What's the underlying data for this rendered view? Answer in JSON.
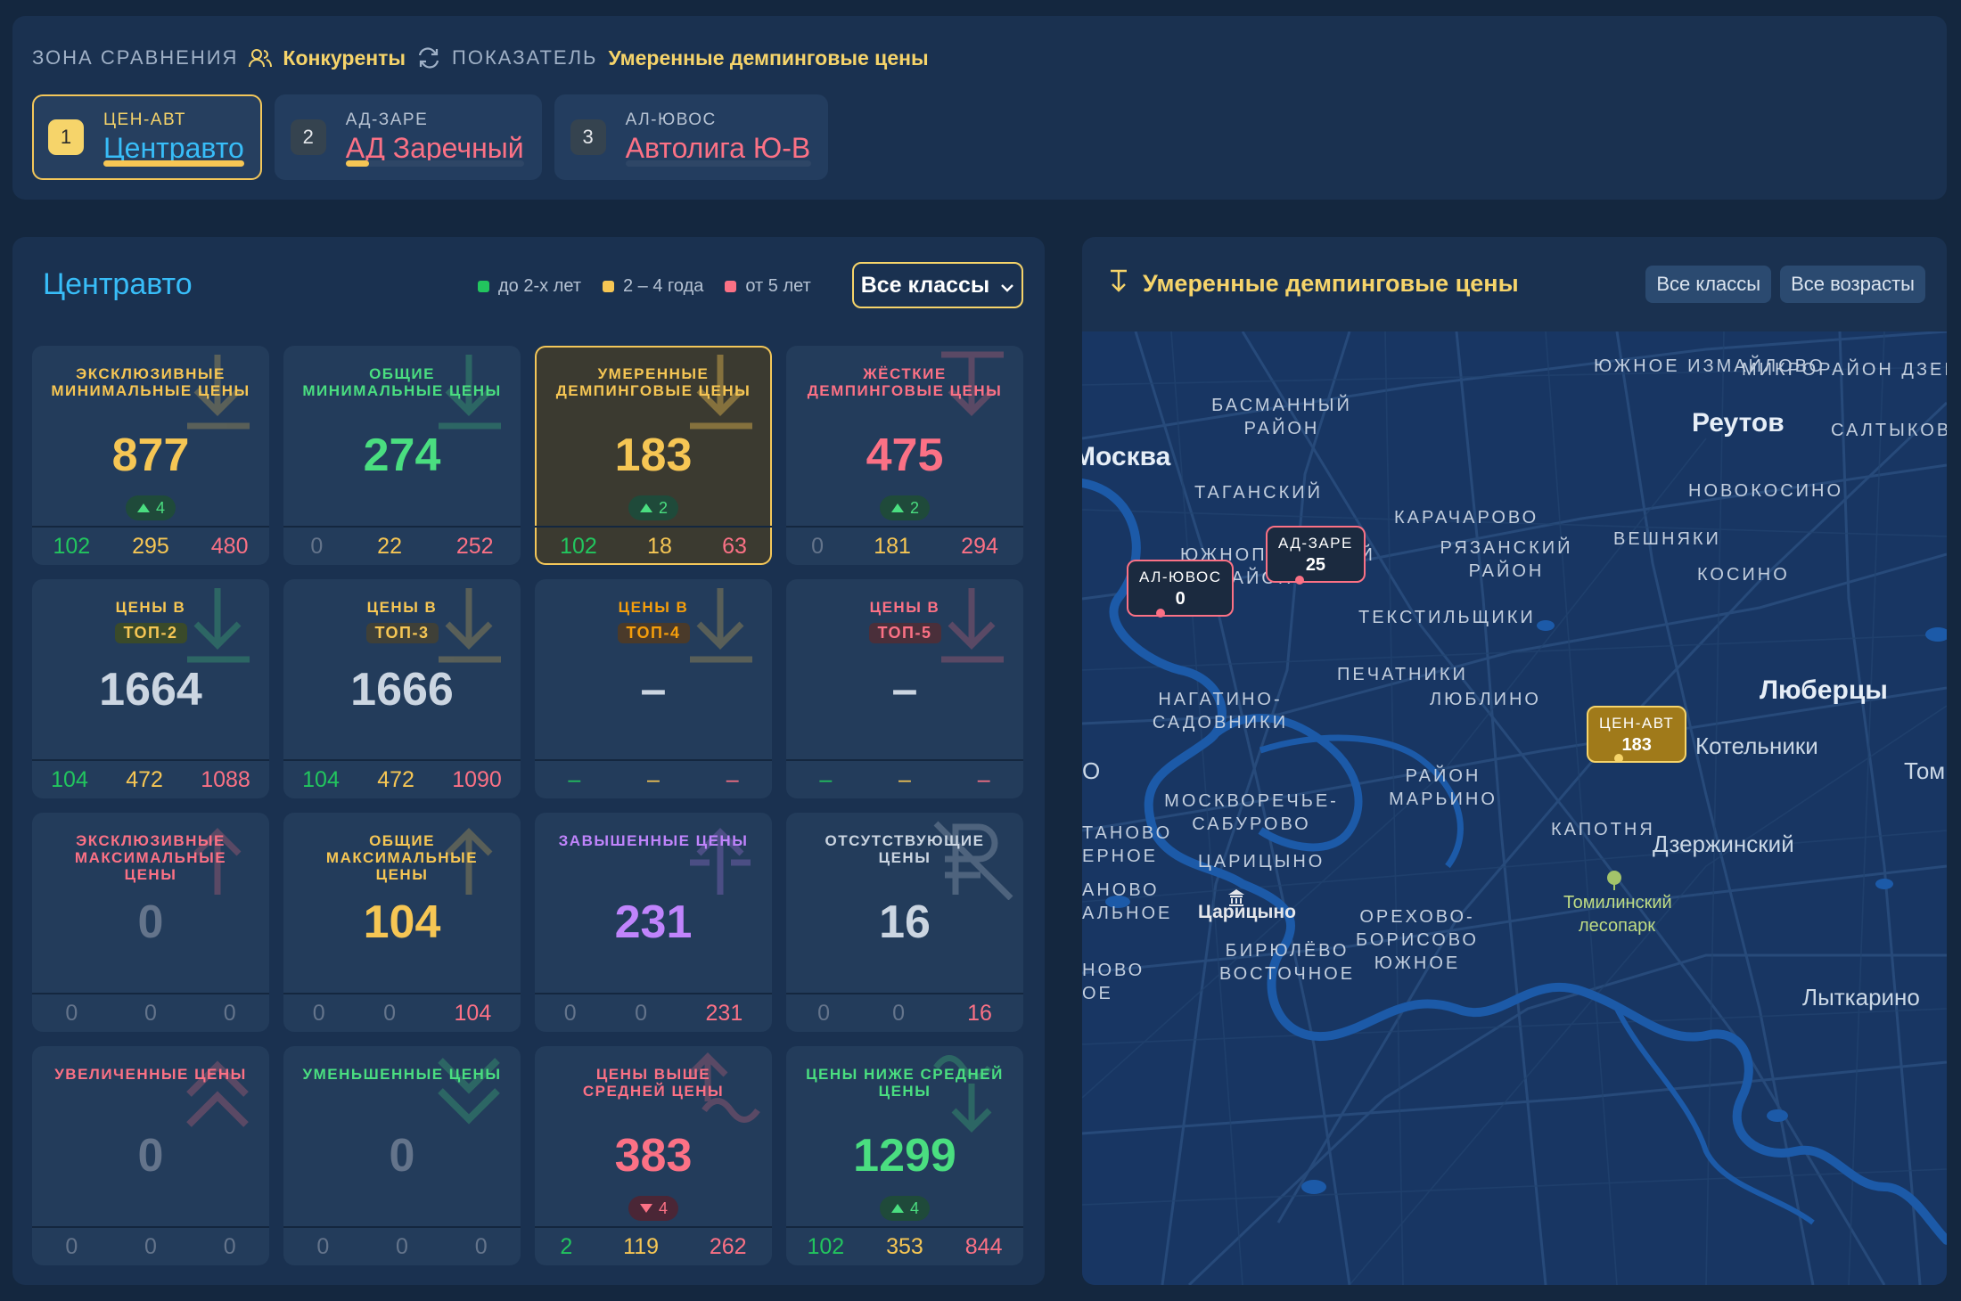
{
  "header": {
    "zone_label": "ЗОНА СРАВНЕНИЯ",
    "zone_value": "Конкуренты",
    "metric_label": "ПОКАЗАТЕЛЬ",
    "metric_value": "Умеренные демпинговые цены",
    "competitors": [
      {
        "num": "1",
        "code": "ЦЕН-АВТ",
        "name": "Центравто",
        "name_color": "#38bdf8",
        "progress": 1.0
      },
      {
        "num": "2",
        "code": "АД-ЗАРЕ",
        "name": "АД Заречный",
        "name_color": "#fb7185",
        "progress": 0.13
      },
      {
        "num": "3",
        "code": "АЛ-ЮВОС",
        "name": "Автолига Ю-В",
        "name_color": "#fb7185",
        "progress": 0.0
      }
    ]
  },
  "left": {
    "title": "Центравто",
    "legend": [
      {
        "label": "до 2-х лет",
        "color": "#22c55e"
      },
      {
        "label": "2 – 4 года",
        "color": "#f6c654"
      },
      {
        "label": "от 5 лет",
        "color": "#fb7185"
      }
    ],
    "class_select": "Все классы",
    "cards": [
      {
        "title": "ЭКСКЛЮЗИВНЫЕ МИНИМАЛЬНЫЕ ЦЕНЫ",
        "tag": "",
        "value": "877",
        "delta": "4",
        "dir": "up",
        "foot": [
          "102",
          "295",
          "480"
        ],
        "icon": "arrow-down",
        "title_color": "#f6c654",
        "value_color": "#f6c654",
        "icon_color": "#f6c654"
      },
      {
        "title": "ОБЩИЕ МИНИМАЛЬНЫЕ ЦЕНЫ",
        "tag": "",
        "value": "274",
        "delta": "",
        "dir": "",
        "foot": [
          "0",
          "22",
          "252"
        ],
        "icon": "arrow-down",
        "title_color": "#4ade80",
        "value_color": "#4ade80",
        "icon_color": "#4ade80"
      },
      {
        "title": "УМЕРЕННЫЕ ДЕМПИНГОВЫЕ ЦЕНЫ",
        "tag": "",
        "value": "183",
        "delta": "2",
        "dir": "up",
        "foot": [
          "102",
          "18",
          "63"
        ],
        "icon": "arrow-down",
        "title_color": "#f6c654",
        "value_color": "#f6c654",
        "icon_color": "#f6c654",
        "selected": true
      },
      {
        "title": "ЖЁСТКИЕ ДЕМПИНГОВЫЕ ЦЕНЫ",
        "tag": "",
        "value": "475",
        "delta": "2",
        "dir": "up",
        "foot": [
          "0",
          "181",
          "294"
        ],
        "icon": "arrow-down-bar",
        "title_color": "#fb7185",
        "value_color": "#fb7185",
        "icon_color": "#fb7185"
      },
      {
        "title": "ЦЕНЫ В",
        "tag": "ТОП-2",
        "value": "1664",
        "delta": "",
        "dir": "",
        "foot": [
          "104",
          "472",
          "1088"
        ],
        "icon": "arrow-down",
        "title_color": "#f6c654",
        "value_color": "#a3e635",
        "icon_color": "#4ade80",
        "tag_bg": "#3a4a2a",
        "tag_color": "#f6c654"
      },
      {
        "title": "ЦЕНЫ В",
        "tag": "ТОП-3",
        "value": "1666",
        "delta": "",
        "dir": "",
        "foot": [
          "104",
          "472",
          "1090"
        ],
        "icon": "arrow-down",
        "title_color": "#f6c654",
        "value_color": "#f6c654",
        "icon_color": "#f6c654",
        "tag_bg": "#3f4038",
        "tag_color": "#f6c654"
      },
      {
        "title": "ЦЕНЫ В",
        "tag": "ТОП-4",
        "value": "–",
        "delta": "",
        "dir": "",
        "foot": [
          "–",
          "–",
          "–"
        ],
        "icon": "arrow-down",
        "title_color": "#f59e0b",
        "value_color": "#f59e0b",
        "icon_color": "#f6c654",
        "tag_bg": "#4a3a2a",
        "tag_color": "#f59e0b"
      },
      {
        "title": "ЦЕНЫ В",
        "tag": "ТОП-5",
        "value": "–",
        "delta": "",
        "dir": "",
        "foot": [
          "–",
          "–",
          "–"
        ],
        "icon": "arrow-down",
        "title_color": "#fb7185",
        "value_color": "#fb7185",
        "icon_color": "#fb7185",
        "tag_bg": "#4a2f3a",
        "tag_color": "#fb7185"
      },
      {
        "title": "ЭКСКЛЮЗИВНЫЕ МАКСИМАЛЬНЫЕ ЦЕНЫ",
        "tag": "",
        "value": "0",
        "delta": "",
        "dir": "",
        "foot": [
          "0",
          "0",
          "0"
        ],
        "icon": "arrow-up",
        "title_color": "#fb7185",
        "value_color": "#64748b",
        "icon_color": "#fb7185"
      },
      {
        "title": "ОБЩИЕ МАКСИМАЛЬНЫЕ ЦЕНЫ",
        "tag": "",
        "value": "104",
        "delta": "",
        "dir": "",
        "foot": [
          "0",
          "0",
          "104"
        ],
        "icon": "arrow-up",
        "title_color": "#f6c654",
        "value_color": "#f6c654",
        "icon_color": "#f6c654"
      },
      {
        "title": "ЗАВЫШЕННЫЕ ЦЕНЫ",
        "tag": "",
        "value": "231",
        "delta": "",
        "dir": "",
        "foot": [
          "0",
          "0",
          "231"
        ],
        "icon": "arrow-up-bar",
        "title_color": "#c084fc",
        "value_color": "#c084fc",
        "icon_color": "#c084fc"
      },
      {
        "title": "ОТСУТСТВУЮЩИЕ ЦЕНЫ",
        "tag": "",
        "value": "16",
        "delta": "",
        "dir": "",
        "foot": [
          "0",
          "0",
          "16"
        ],
        "icon": "ruble-off",
        "title_color": "#cbd5e1",
        "value_color": "#cbd5e1",
        "icon_color": "#cbd5e1"
      },
      {
        "title": "УВЕЛИЧЕННЫЕ ЦЕНЫ",
        "tag": "",
        "value": "0",
        "delta": "",
        "dir": "",
        "foot": [
          "0",
          "0",
          "0"
        ],
        "icon": "chevrons-up",
        "title_color": "#fb7185",
        "value_color": "#64748b",
        "icon_color": "#fb7185"
      },
      {
        "title": "УМЕНЬШЕННЫЕ ЦЕНЫ",
        "tag": "",
        "value": "0",
        "delta": "",
        "dir": "",
        "foot": [
          "0",
          "0",
          "0"
        ],
        "icon": "chevrons-down",
        "title_color": "#4ade80",
        "value_color": "#64748b",
        "icon_color": "#4ade80"
      },
      {
        "title": "ЦЕНЫ ВЫШЕ СРЕДНЕЙ ЦЕНЫ",
        "tag": "",
        "value": "383",
        "delta": "4",
        "dir": "down",
        "foot": [
          "2",
          "119",
          "262"
        ],
        "icon": "arrow-up-wave",
        "title_color": "#fb7185",
        "value_color": "#fb7185",
        "icon_color": "#fb7185"
      },
      {
        "title": "ЦЕНЫ НИЖЕ СРЕДНЕЙ ЦЕНЫ",
        "tag": "",
        "value": "1299",
        "delta": "4",
        "dir": "up",
        "foot": [
          "102",
          "353",
          "844"
        ],
        "icon": "arrow-down-wave",
        "title_color": "#4ade80",
        "value_color": "#4ade80",
        "icon_color": "#4ade80"
      }
    ]
  },
  "right": {
    "title": "Умеренные демпинговые цены",
    "filters": [
      "Все классы",
      "Все возрасты"
    ],
    "map": {
      "districts": [
        "ЮЖНОЕ ИЗМАЙЛОВО",
        "МИКРОРАЙОН ДЗЕРЖИНСКОГО",
        "БАСМАННЫЙ РАЙОН",
        "САЛТЫКОВ",
        "ТАГАНСКИЙ",
        "НОВОКОСИНО",
        "КАРАЧАРОВО",
        "ВЕШНЯКИ",
        "ЮЖНОПОРТОВЫЙ РАЙОН",
        "РЯЗАНСКИЙ РАЙОН",
        "КОСИНО",
        "ТЕКСТИЛЬЩИКИ",
        "ПЕЧАТНИКИ",
        "НАГАТИНО-САДОВНИКИ",
        "ЛЮБЛИНО",
        "РАЙОН МАРЬИНО",
        "МОСКВОРЕЧЬЕ-САБУРОВО",
        "КАПОТНЯ",
        "ЦАРИЦЫНО",
        "ОРЕХОВО-БОРИСОВО ЮЖНОЕ",
        "БИРЮЛЁВО ВОСТОЧНОЕ",
        "ТАНОВО ЕРНОЕ",
        "АНОВО АЛЬНОЕ",
        "НОВО ОЕ"
      ],
      "cities": [
        "Москва",
        "Реутов",
        "Люберцы",
        "Котельники",
        "Дзержинский",
        "Лыткарино",
        "Том",
        "О"
      ],
      "places": [
        "Царицыно",
        "Томилинский лесопарк"
      ],
      "pins": [
        {
          "code": "АЛ-ЮВОС",
          "value": "0"
        },
        {
          "code": "АД-ЗАРЕ",
          "value": "25"
        },
        {
          "code": "ЦЕН-АВТ",
          "value": "183"
        }
      ]
    }
  }
}
